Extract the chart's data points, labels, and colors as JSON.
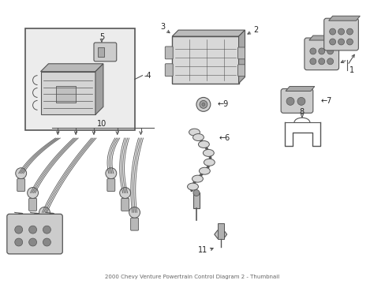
{
  "bg_color": "#ffffff",
  "line_color": "#555555",
  "fig_width": 4.89,
  "fig_height": 3.6,
  "dpi": 100
}
